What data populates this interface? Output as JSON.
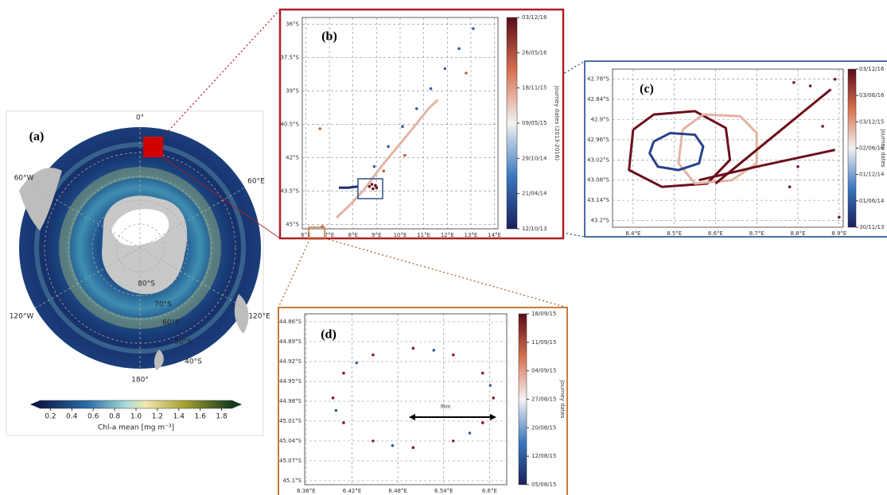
{
  "chart_data": [
    {
      "type": "map",
      "label": "(a)",
      "graticule_labels": [
        "0°",
        "60°E",
        "120°E",
        "180°",
        "120°W",
        "60°W"
      ],
      "latitude_labels": [
        "80°S",
        "70°S",
        "60°S",
        "50°S",
        "40°S"
      ],
      "colorbar": {
        "label": "Chl-a mean [mg m⁻³]",
        "lim": [
          0.1,
          1.9
        ],
        "ticks": [
          0.2,
          0.4,
          0.6,
          0.8,
          {
            "value": 1,
            "label": "1.0"
          },
          1.2,
          1.4,
          1.6,
          1.8
        ]
      }
    },
    {
      "type": "scatter",
      "label": "(b)",
      "xlim": [
        5.85,
        14.15
      ],
      "ylim": [
        -45.2,
        -35.7
      ],
      "grid": true,
      "xticks": [
        {
          "value": 6,
          "label": "6°E"
        },
        {
          "value": 7,
          "label": "7°E"
        },
        {
          "value": 8,
          "label": "8°E"
        },
        {
          "value": 9,
          "label": "9°E"
        },
        {
          "value": 10,
          "label": "10°E"
        },
        {
          "value": 11,
          "label": "11°E"
        },
        {
          "value": 12,
          "label": "12°E"
        },
        {
          "value": 13,
          "label": "13°E"
        },
        {
          "value": 14,
          "label": "14°E"
        }
      ],
      "yticks": [
        {
          "value": -36,
          "label": "36°S"
        },
        {
          "value": -37.5,
          "label": "37.5°S"
        },
        {
          "value": -39,
          "label": "39°S"
        },
        {
          "value": -40.5,
          "label": "40.5°S"
        },
        {
          "value": -42,
          "label": "42°S"
        },
        {
          "value": -43.5,
          "label": "43.5°S"
        },
        {
          "value": -45,
          "label": "45°S"
        }
      ],
      "series": [
        {
          "mode": "scatter",
          "color": "#3a5ca8",
          "x": [
            8.9,
            9.5,
            10.1,
            10.7,
            11.3,
            11.9,
            12.5,
            13.1
          ],
          "y": [
            -42.4,
            -41.5,
            -40.6,
            -39.8,
            -38.9,
            -38.0,
            -37.1,
            -36.2
          ]
        },
        {
          "mode": "line",
          "color": "#e2b4a4",
          "x": [
            7.3,
            7.9,
            8.5,
            9.2,
            9.9,
            10.6,
            11.2,
            11.6
          ],
          "y": [
            -44.7,
            -44.1,
            -43.4,
            -42.4,
            -41.5,
            -40.6,
            -39.8,
            -39.4
          ]
        },
        {
          "mode": "line",
          "color": "#1f2d6b",
          "x": [
            7.4,
            7.8,
            8.2
          ],
          "y": [
            -43.35,
            -43.35,
            -43.3
          ]
        },
        {
          "mode": "scatter",
          "color": "#6b0f1a",
          "x": [
            8.7,
            8.8,
            8.95,
            9.0,
            8.85
          ],
          "y": [
            -43.3,
            -43.2,
            -43.25,
            -43.35,
            -43.4
          ]
        },
        {
          "mode": "scatter",
          "color": "#c06040",
          "x": [
            6.6,
            12.8,
            9.3,
            10.2,
            6.7
          ],
          "y": [
            -40.7,
            -38.2,
            -42.6,
            -41.9,
            -45.1
          ]
        }
      ],
      "colorbar": {
        "label": "Journey dates (2013-2016)",
        "ticks": [
          "12/10/13",
          "21/04/14",
          "29/10/14",
          "09/05/15",
          "18/11/15",
          "26/05/16",
          "03/12/16"
        ]
      }
    },
    {
      "type": "scatter",
      "label": "(c)",
      "xlim": [
        8.35,
        8.91
      ],
      "ylim": [
        -43.22,
        -42.75
      ],
      "grid": true,
      "xticks": [
        {
          "value": 8.4,
          "label": "8.4°E"
        },
        {
          "value": 8.5,
          "label": "8.5°E"
        },
        {
          "value": 8.6,
          "label": "8.6°E"
        },
        {
          "value": 8.7,
          "label": "8.7°E"
        },
        {
          "value": 8.8,
          "label": "8.8°E"
        },
        {
          "value": 8.9,
          "label": "8.9°E"
        }
      ],
      "yticks": [
        {
          "value": -42.78,
          "label": "42.78°S"
        },
        {
          "value": -42.84,
          "label": "42.84°S"
        },
        {
          "value": -42.9,
          "label": "42.9°S"
        },
        {
          "value": -42.96,
          "label": "42.96°S"
        },
        {
          "value": -43.02,
          "label": "43.02°S"
        },
        {
          "value": -43.08,
          "label": "43.08°S"
        },
        {
          "value": -43.14,
          "label": "43.14°S"
        },
        {
          "value": -43.2,
          "label": "43.2°S"
        }
      ],
      "series": [
        {
          "mode": "line",
          "color": "#6b0f1a",
          "x": [
            8.4,
            8.45,
            8.55,
            8.625,
            8.635,
            8.58,
            8.47,
            8.39,
            8.4
          ],
          "y": [
            -42.93,
            -42.885,
            -42.875,
            -42.925,
            -43.02,
            -43.09,
            -43.1,
            -43.05,
            -42.93
          ]
        },
        {
          "mode": "line",
          "color": "#e4b3a3",
          "x": [
            8.52,
            8.57,
            8.66,
            8.7,
            8.7,
            8.64,
            8.55,
            8.51,
            8.52
          ],
          "y": [
            -42.93,
            -42.885,
            -42.89,
            -42.94,
            -43.03,
            -43.08,
            -43.09,
            -43.03,
            -42.93
          ]
        },
        {
          "mode": "line",
          "color": "#27408b",
          "x": [
            8.45,
            8.49,
            8.55,
            8.57,
            8.56,
            8.51,
            8.46,
            8.44,
            8.45
          ],
          "y": [
            -42.965,
            -42.94,
            -42.945,
            -42.98,
            -43.03,
            -43.05,
            -43.04,
            -43.0,
            -42.965
          ]
        },
        {
          "mode": "line",
          "color": "#6b0f1a",
          "x": [
            8.6,
            8.75,
            8.88
          ],
          "y": [
            -43.09,
            -42.94,
            -42.81
          ]
        },
        {
          "mode": "line",
          "color": "#6b0f1a",
          "x": [
            8.56,
            8.7,
            8.89
          ],
          "y": [
            -43.08,
            -43.04,
            -42.99
          ]
        },
        {
          "mode": "scatter",
          "color": "#7a1626",
          "x": [
            8.79,
            8.83,
            8.86,
            8.72,
            8.8,
            8.89,
            8.9,
            8.78
          ],
          "y": [
            -42.79,
            -42.8,
            -42.92,
            -42.97,
            -43.04,
            -42.78,
            -43.19,
            -43.1
          ]
        }
      ],
      "colorbar": {
        "label": "Journey dates",
        "ticks": [
          "30/11/13",
          "01/06/14",
          "01/12/14",
          "02/06/15",
          "03/12/15",
          "03/06/16",
          "03/12/16"
        ]
      }
    },
    {
      "type": "scatter",
      "label": "(d)",
      "xlim": [
        6.358,
        6.6225
      ],
      "ylim": [
        -45.106,
        -44.848
      ],
      "grid": true,
      "xticks": [
        {
          "value": 6.36,
          "label": "6.36°E"
        },
        {
          "value": 6.42,
          "label": "6.42°E"
        },
        {
          "value": 6.48,
          "label": "6.48°E"
        },
        {
          "value": 6.54,
          "label": "6.54°E"
        },
        {
          "value": 6.6,
          "label": "6.6°E"
        }
      ],
      "yticks": [
        {
          "value": -44.86,
          "label": "44.86°S"
        },
        {
          "value": -44.89,
          "label": "44.89°S"
        },
        {
          "value": -44.92,
          "label": "44.92°S"
        },
        {
          "value": -44.95,
          "label": "44.95°S"
        },
        {
          "value": -44.98,
          "label": "44.98°S"
        },
        {
          "value": -45.01,
          "label": "45.01°S"
        },
        {
          "value": -45.04,
          "label": "45.04°S"
        },
        {
          "value": -45.07,
          "label": "45.07°S"
        },
        {
          "value": -45.1,
          "label": "45.1°S"
        }
      ],
      "series": [
        {
          "mode": "scatter",
          "color": "#8b1a2b",
          "x": [
            6.605,
            6.591,
            6.5525,
            6.5,
            6.4475,
            6.409,
            6.395,
            6.409,
            6.4475,
            6.5,
            6.5525,
            6.591
          ],
          "y": [
            -44.975,
            -44.9375,
            -44.91,
            -44.9,
            -44.91,
            -44.9375,
            -44.975,
            -45.0125,
            -45.04,
            -45.05,
            -45.04,
            -45.0125
          ]
        },
        {
          "mode": "scatter",
          "color": "#3060a0",
          "x": [
            6.601,
            6.527,
            6.426,
            6.399,
            6.473,
            6.574
          ],
          "y": [
            -44.956,
            -44.903,
            -44.922,
            -44.994,
            -45.047,
            -45.028
          ]
        }
      ],
      "annotation": "8km",
      "colorbar": {
        "label": "Journey dates",
        "ticks": [
          "05/08/15",
          "12/08/15",
          "20/08/15",
          "27/08/15",
          "04/09/15",
          "11/09/15",
          "18/09/15"
        ]
      }
    }
  ]
}
